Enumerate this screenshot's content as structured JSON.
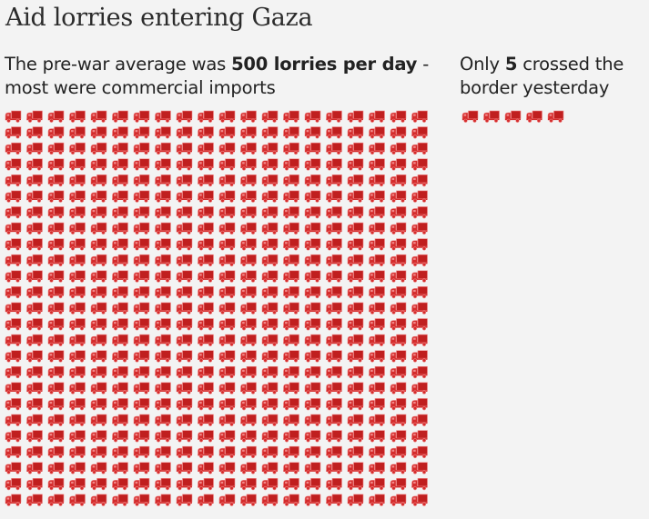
{
  "title": "Aid lorries entering Gaza",
  "left_panel": {
    "text_before": "The pre-war average was ",
    "text_bold": "500 lorries per day",
    "text_after": " - most were commercial imports"
  },
  "right_panel": {
    "text_before": "Only ",
    "text_bold": "5",
    "text_after": " crossed the border yesterday"
  },
  "colors": {
    "truck": "#d42c2c",
    "truck_cargo": "#c01f1f",
    "truck_outline": "#f28a8a",
    "background": "#f3f3f3"
  },
  "chart_data": {
    "type": "pictogram",
    "title": "Aid lorries entering Gaza",
    "unit": "1 icon = 1 lorry",
    "icon": "truck-icon",
    "series": [
      {
        "name": "Pre-war daily average",
        "value": 500,
        "columns": 20
      },
      {
        "name": "Crossed yesterday",
        "value": 5,
        "columns": 5
      }
    ]
  }
}
